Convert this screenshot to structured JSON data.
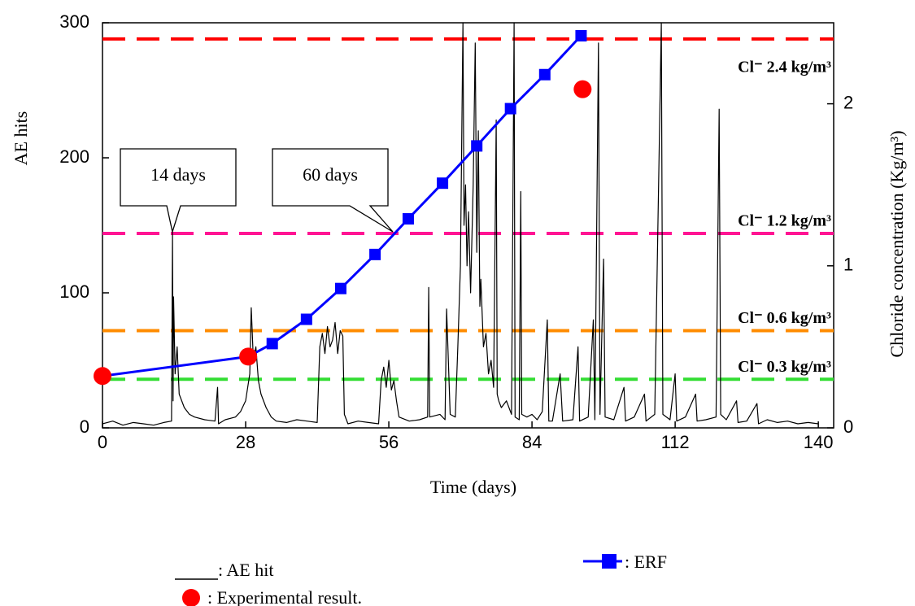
{
  "chart_data": {
    "type": "line",
    "xlabel": "Time (days)",
    "ylabel": "AE hits",
    "y2label": "Chloride concentration (Kg/m³)",
    "xlim": [
      0,
      143
    ],
    "xticks": [
      0,
      28,
      56,
      84,
      112,
      140
    ],
    "ylim": [
      0,
      300
    ],
    "yticks": [
      0,
      100,
      200,
      300
    ],
    "y2lim": [
      0,
      2.5
    ],
    "y2ticks": [
      0,
      1,
      2
    ],
    "series": [
      {
        "name": ": AE hit",
        "color": "#000000",
        "style": "line",
        "axis": "y",
        "x": [
          0,
          2,
          4,
          6,
          8,
          10,
          12,
          13.5,
          13.7,
          13.8,
          13.9,
          14.2,
          14.6,
          15,
          16,
          17,
          18,
          20,
          22,
          22.5,
          22.7,
          24,
          26,
          27,
          28,
          28.8,
          29.1,
          29.5,
          30,
          30.5,
          31,
          32,
          33,
          34,
          36,
          38,
          40,
          42,
          42.5,
          43,
          43.5,
          44,
          44.5,
          45,
          45.5,
          46,
          46.5,
          47,
          47.3,
          48,
          50,
          52,
          54,
          54.5,
          55,
          55.5,
          56,
          56.5,
          57,
          57.5,
          58,
          60,
          62,
          63.6,
          63.8,
          64,
          66,
          67,
          67.3,
          68,
          69,
          69.5,
          70,
          70.5,
          70.7,
          71,
          71.3,
          71.6,
          72,
          72.5,
          72.9,
          73.2,
          73.5,
          73.8,
          74,
          74.5,
          75,
          75.5,
          76,
          76.5,
          77,
          77.2,
          77.5,
          78,
          79,
          80,
          80.5,
          80.7,
          81.5,
          81.8,
          82,
          83,
          84,
          85,
          86,
          87,
          87.3,
          88,
          89.5,
          90,
          92,
          93,
          93.3,
          95,
          96,
          96.3,
          97,
          97.3,
          98,
          98.3,
          100,
          102,
          102.3,
          104,
          106,
          106.3,
          108,
          109.3,
          109.6,
          111,
          112,
          112.3,
          114,
          116,
          116.3,
          118,
          120,
          120.6,
          120.9,
          122,
          124,
          124.3,
          126,
          128,
          128.3,
          130,
          132,
          134,
          136,
          138,
          140
        ],
        "values": [
          3,
          5,
          2,
          4,
          3,
          2,
          4,
          5,
          145,
          20,
          97,
          40,
          60,
          25,
          15,
          10,
          8,
          6,
          5,
          30,
          3,
          6,
          8,
          12,
          20,
          40,
          89,
          50,
          60,
          35,
          25,
          15,
          8,
          5,
          4,
          6,
          5,
          4,
          60,
          70,
          55,
          75,
          60,
          65,
          78,
          55,
          72,
          68,
          10,
          3,
          5,
          4,
          3,
          35,
          45,
          30,
          50,
          28,
          35,
          20,
          8,
          5,
          6,
          8,
          104,
          8,
          10,
          6,
          88,
          10,
          8,
          60,
          120,
          300,
          150,
          180,
          120,
          160,
          100,
          180,
          285,
          130,
          220,
          90,
          110,
          60,
          70,
          40,
          50,
          30,
          228,
          25,
          20,
          15,
          20,
          10,
          300,
          8,
          6,
          175,
          10,
          8,
          10,
          6,
          12,
          80,
          5,
          5,
          40,
          5,
          6,
          60,
          5,
          8,
          80,
          6,
          285,
          10,
          125,
          8,
          6,
          30,
          5,
          8,
          25,
          5,
          10,
          300,
          10,
          6,
          40,
          5,
          8,
          25,
          5,
          6,
          8,
          236,
          10,
          6,
          20,
          4,
          5,
          18,
          3,
          6,
          4,
          5,
          3,
          4,
          3
        ]
      },
      {
        "name": ": ERF",
        "color": "#0000ff",
        "style": "line-markers",
        "axis": "y2",
        "x": [
          0,
          28.5,
          33.2,
          39.9,
          46.6,
          53.3,
          59.8,
          66.5,
          73.2,
          79.8,
          86.5,
          93.6
        ],
        "values": [
          0.32,
          0.44,
          0.52,
          0.67,
          0.86,
          1.07,
          1.29,
          1.51,
          1.74,
          1.97,
          2.18,
          2.42
        ]
      },
      {
        "name": ": Experimental result.",
        "color": "#ff0000",
        "style": "markers",
        "axis": "y2",
        "x": [
          0,
          28.5,
          93.9
        ],
        "values": [
          0.32,
          0.44,
          2.09
        ]
      }
    ],
    "reference_lines": [
      {
        "value": 2.4,
        "label": "Cl⁻ 2.4 kg/m³",
        "color": "#ff0000"
      },
      {
        "value": 1.2,
        "label": "Cl⁻ 1.2 kg/m³",
        "color": "#ff1493"
      },
      {
        "value": 0.6,
        "label": "Cl⁻ 0.6 kg/m³",
        "color": "#ff8c00"
      },
      {
        "value": 0.3,
        "label": "Cl⁻ 0.3 kg/m³",
        "color": "#33dd33"
      }
    ],
    "annotations": [
      "14 days",
      "60 days"
    ]
  }
}
